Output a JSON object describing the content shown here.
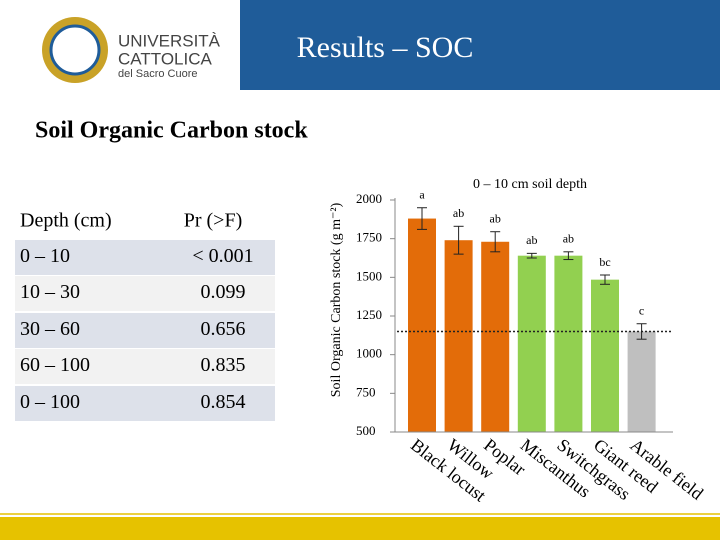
{
  "header": {
    "title": "Results – SOC",
    "logo_lines": [
      "UNIVERSITÀ",
      "CATTOLICA",
      "del Sacro Cuore"
    ]
  },
  "subtitle": "Soil Organic Carbon stock",
  "table": {
    "columns": [
      "Depth (cm)",
      "Pr (>F)"
    ],
    "rows": [
      [
        "0 – 10",
        "< 0.001"
      ],
      [
        "10 – 30",
        "0.099"
      ],
      [
        "30 – 60",
        "0.656"
      ],
      [
        "60 – 100",
        "0.835"
      ],
      [
        "0 – 100",
        "0.854"
      ]
    ]
  },
  "chart_data": {
    "type": "bar",
    "title": "0 – 10 cm soil depth",
    "y_label": "Soil Organic Carbon stock (g m⁻²)",
    "categories": [
      "Black locust",
      "Willow",
      "Poplar",
      "Miscanthus",
      "Switchgrass",
      "Giant reed",
      "Arable field"
    ],
    "values": [
      1880,
      1740,
      1730,
      1640,
      1640,
      1485,
      1150
    ],
    "errors": [
      70,
      90,
      65,
      15,
      25,
      30,
      50
    ],
    "annotations": [
      "a",
      "ab",
      "ab",
      "ab",
      "ab",
      "bc",
      "c"
    ],
    "colors": [
      "#e36c09",
      "#e36c09",
      "#e36c09",
      "#92d050",
      "#92d050",
      "#92d050",
      "#bfbfbf"
    ],
    "ylim": [
      500,
      2000
    ],
    "yticks": [
      500,
      750,
      1000,
      1250,
      1500,
      1750,
      2000
    ]
  }
}
